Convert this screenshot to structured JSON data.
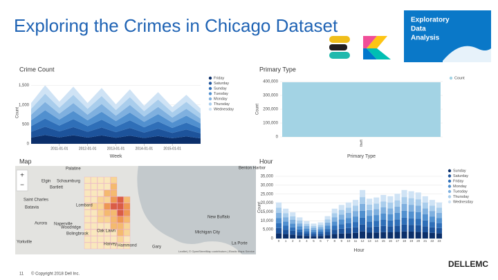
{
  "slide": {
    "title": "Exploring the Crimes in Chicago Dataset",
    "logo_lines": [
      "Exploratory",
      "Data",
      "Analysis"
    ],
    "page_number": "11",
    "copyright": "© Copyright 2018 Dell Inc.",
    "brand": "DELLEMC"
  },
  "map": {
    "title": "Map",
    "places": [
      "Palatine",
      "Elgin",
      "Schaumburg",
      "Bartlett",
      "Saint Charles",
      "Batavia",
      "Lombard",
      "Aurora",
      "Naperville",
      "Woodridge",
      "Bolingbrook",
      "Yorkville",
      "Oak Lawn",
      "Harvey",
      "Hammond",
      "Gary",
      "Michigan City",
      "New Buffalo",
      "La Porte",
      "Benton Harbor"
    ],
    "attribution": "Leaflet | © OpenStreetMap contributors | Elastic Maps Service"
  },
  "chart_data": [
    {
      "type": "area",
      "title": "Crime Count",
      "ylabel": "Count",
      "xlabel": "Week",
      "x": [
        "2010-01-01",
        "2010-07-01",
        "2011-01-01",
        "2011-07-01",
        "2012-01-01",
        "2012-07-01",
        "2013-01-01",
        "2013-07-01",
        "2014-01-01",
        "2014-07-01",
        "2015-01-01",
        "2015-07-01",
        "2016-01-01"
      ],
      "xlim": [
        "2010-01-01",
        "2016-01-01"
      ],
      "xticks": [
        "2011-01-01",
        "2012-01-01",
        "2013-01-01",
        "2014-01-01",
        "2015-01-01"
      ],
      "ylim": [
        0,
        1600
      ],
      "yticks": [
        0,
        500,
        {
          "value": 1000,
          "label": "1,000"
        },
        {
          "value": 1500,
          "label": "1,500"
        }
      ],
      "series": [
        {
          "name": "Friday",
          "color": "#0b2f6a",
          "values": [
            160,
            225,
            165,
            220,
            160,
            215,
            155,
            210,
            150,
            200,
            145,
            190,
            140
          ]
        },
        {
          "name": "Saturday",
          "color": "#1d539b",
          "values": [
            150,
            215,
            155,
            210,
            150,
            205,
            145,
            200,
            140,
            190,
            135,
            180,
            130
          ]
        },
        {
          "name": "Sunday",
          "color": "#2f6fb8",
          "values": [
            145,
            210,
            150,
            205,
            145,
            200,
            140,
            195,
            135,
            185,
            130,
            175,
            125
          ]
        },
        {
          "name": "Tuesday",
          "color": "#5190cf",
          "values": [
            150,
            215,
            155,
            210,
            150,
            205,
            145,
            200,
            140,
            190,
            135,
            180,
            130
          ]
        },
        {
          "name": "Monday",
          "color": "#7fb0df",
          "values": [
            145,
            210,
            150,
            205,
            145,
            200,
            140,
            195,
            135,
            185,
            130,
            175,
            125
          ]
        },
        {
          "name": "Thursday",
          "color": "#a9cdec",
          "values": [
            150,
            215,
            155,
            210,
            150,
            205,
            145,
            200,
            140,
            190,
            135,
            180,
            130
          ]
        },
        {
          "name": "Wednesday",
          "color": "#cfe3f5",
          "values": [
            150,
            215,
            155,
            210,
            150,
            205,
            145,
            200,
            140,
            190,
            135,
            180,
            130
          ]
        }
      ]
    },
    {
      "type": "bar",
      "title": "Primary Type",
      "ylabel": "Count",
      "xlabel": "Primary Type",
      "categories": [
        "theft"
      ],
      "values": [
        395000
      ],
      "series_name": "Count",
      "color": "#a3d3e4",
      "ylim": [
        0,
        400000
      ],
      "yticks": [
        0,
        {
          "value": 100000,
          "label": "100,000"
        },
        {
          "value": 200000,
          "label": "200,000"
        },
        {
          "value": 300000,
          "label": "300,000"
        },
        {
          "value": 400000,
          "label": "400,000"
        }
      ]
    },
    {
      "type": "stacked_bar",
      "title": "Hour",
      "ylabel": "Count",
      "xlabel": "Hour",
      "categories": [
        "0",
        "1",
        "2",
        "3",
        "4",
        "5",
        "6",
        "7",
        "8",
        "9",
        "10",
        "11",
        "12",
        "13",
        "14",
        "15",
        "16",
        "17",
        "18",
        "19",
        "20",
        "21",
        "22",
        "23"
      ],
      "ylim": [
        0,
        35000
      ],
      "yticks": [
        0,
        {
          "value": 5000,
          "label": "5,000"
        },
        {
          "value": 10000,
          "label": "10,000"
        },
        {
          "value": 15000,
          "label": "15,000"
        },
        {
          "value": 20000,
          "label": "20,000"
        },
        {
          "value": 25000,
          "label": "25,000"
        },
        {
          "value": 30000,
          "label": "30,000"
        },
        {
          "value": 35000,
          "label": "35,000"
        }
      ],
      "series": [
        {
          "name": "Sunday",
          "color": "#0b2f6a",
          "values": [
            3000,
            2500,
            2200,
            1800,
            1500,
            1300,
            1400,
            1900,
            2500,
            2800,
            3000,
            3200,
            4000,
            3300,
            3400,
            3600,
            3500,
            3700,
            4000,
            3900,
            3800,
            3500,
            3200,
            3000
          ]
        },
        {
          "name": "Saturday",
          "color": "#1d539b",
          "values": [
            2900,
            2400,
            2100,
            1700,
            1400,
            1200,
            1300,
            1800,
            2400,
            2700,
            2900,
            3100,
            3900,
            3200,
            3300,
            3500,
            3400,
            3600,
            3900,
            3800,
            3700,
            3400,
            3100,
            2900
          ]
        },
        {
          "name": "Friday",
          "color": "#2f6fb8",
          "values": [
            2800,
            2300,
            2000,
            1600,
            1300,
            1100,
            1200,
            1700,
            2300,
            2600,
            2800,
            3000,
            3800,
            3100,
            3200,
            3400,
            3300,
            3500,
            3800,
            3700,
            3600,
            3300,
            3000,
            2800
          ]
        },
        {
          "name": "Monday",
          "color": "#5190cf",
          "values": [
            2900,
            2400,
            2100,
            1700,
            1400,
            1200,
            1300,
            1800,
            2400,
            2700,
            2900,
            3100,
            3900,
            3200,
            3300,
            3500,
            3400,
            3600,
            3900,
            3800,
            3700,
            3400,
            3100,
            2900
          ]
        },
        {
          "name": "Tuesday",
          "color": "#7fb0df",
          "values": [
            2900,
            2400,
            2100,
            1700,
            1400,
            1200,
            1300,
            1800,
            2400,
            2700,
            2900,
            3100,
            3900,
            3200,
            3300,
            3500,
            3400,
            3600,
            3900,
            3800,
            3700,
            3400,
            3100,
            2900
          ]
        },
        {
          "name": "Thursday",
          "color": "#a9cdec",
          "values": [
            2800,
            2300,
            2000,
            1600,
            1300,
            1100,
            1200,
            1700,
            2300,
            2600,
            2800,
            3000,
            3800,
            3100,
            3200,
            3400,
            3300,
            3500,
            3800,
            3700,
            3600,
            3300,
            3000,
            2800
          ]
        },
        {
          "name": "Wednesday",
          "color": "#cfe3f5",
          "values": [
            3000,
            2500,
            2200,
            1800,
            1500,
            1300,
            1400,
            1900,
            2500,
            2800,
            3000,
            3200,
            4000,
            3300,
            3400,
            3600,
            3500,
            3700,
            4000,
            3900,
            3800,
            3500,
            3200,
            3000
          ]
        }
      ]
    }
  ]
}
